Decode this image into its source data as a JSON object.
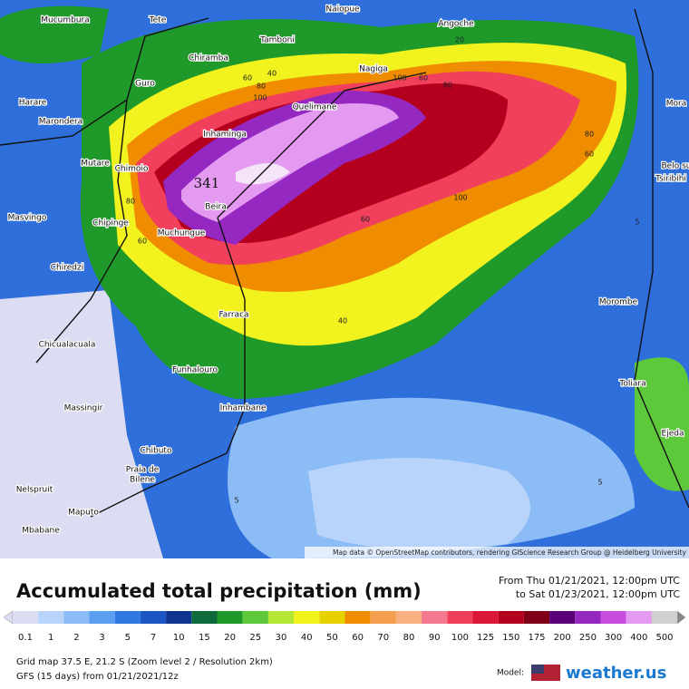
{
  "map": {
    "places": [
      "Mucumbura",
      "Tete",
      "Naiopue",
      "Angoche",
      "Tamboni",
      "Chiramba",
      "Nagiga",
      "Guro",
      "Harare",
      "Marondera",
      "Quelimane",
      "Inhaminga",
      "Mutare",
      "Chimoio",
      "Beira",
      "Masvingo",
      "Chipinge",
      "Muchungue",
      "Chiredzi",
      "Morombe",
      "Farraca",
      "Chicualacuala",
      "Funhalouro",
      "Massingir",
      "Inhambane",
      "Toliara",
      "Ejeda",
      "Chibuto",
      "Praia de",
      "Bilene",
      "Nelspruit",
      "Maputo",
      "Mbabane",
      "Mora",
      "Belo su",
      "Tsiribihi"
    ],
    "contour_labels": [
      60,
      40,
      80,
      100,
      100,
      60,
      80,
      20,
      80,
      60,
      100,
      60,
      80,
      60,
      40,
      5,
      5,
      5
    ],
    "max_label": 341,
    "attribution": "Map data © OpenStreetMap contributors, rendering GIScience Research Group @ Heidelberg University"
  },
  "legend": {
    "title": "Accumulated total precipitation (mm)",
    "from": "From Thu 01/21/2021, 12:00pm UTC",
    "to": "to Sat 01/23/2021, 12:00pm UTC",
    "labels": [
      0.1,
      1,
      2,
      3,
      5,
      7,
      10,
      15,
      20,
      25,
      30,
      40,
      50,
      60,
      70,
      80,
      90,
      100,
      125,
      150,
      175,
      200,
      250,
      300,
      400,
      500
    ],
    "colors": [
      "#dcdcf2",
      "#b8d4fa",
      "#8cbcf6",
      "#5c9ef0",
      "#3278e2",
      "#1c56c4",
      "#0e3490",
      "#0e6a3a",
      "#1f9a2a",
      "#5cc83a",
      "#b4e636",
      "#f2f21e",
      "#e6d000",
      "#f08c00",
      "#f4a050",
      "#f8b080",
      "#f47890",
      "#f0405c",
      "#dc1838",
      "#b4001e",
      "#800018",
      "#5c0078",
      "#9428c0",
      "#c84ee0",
      "#e49af0",
      "#d0d0d0"
    ]
  },
  "footer": {
    "grid": "Grid map 37.5 E, 21.2 S (Zoom level 2 / Resolution 2km)",
    "model_run": "GFS (15 days) from 01/21/2021/12z",
    "model_label": "Model:",
    "brand": "weather.us"
  }
}
